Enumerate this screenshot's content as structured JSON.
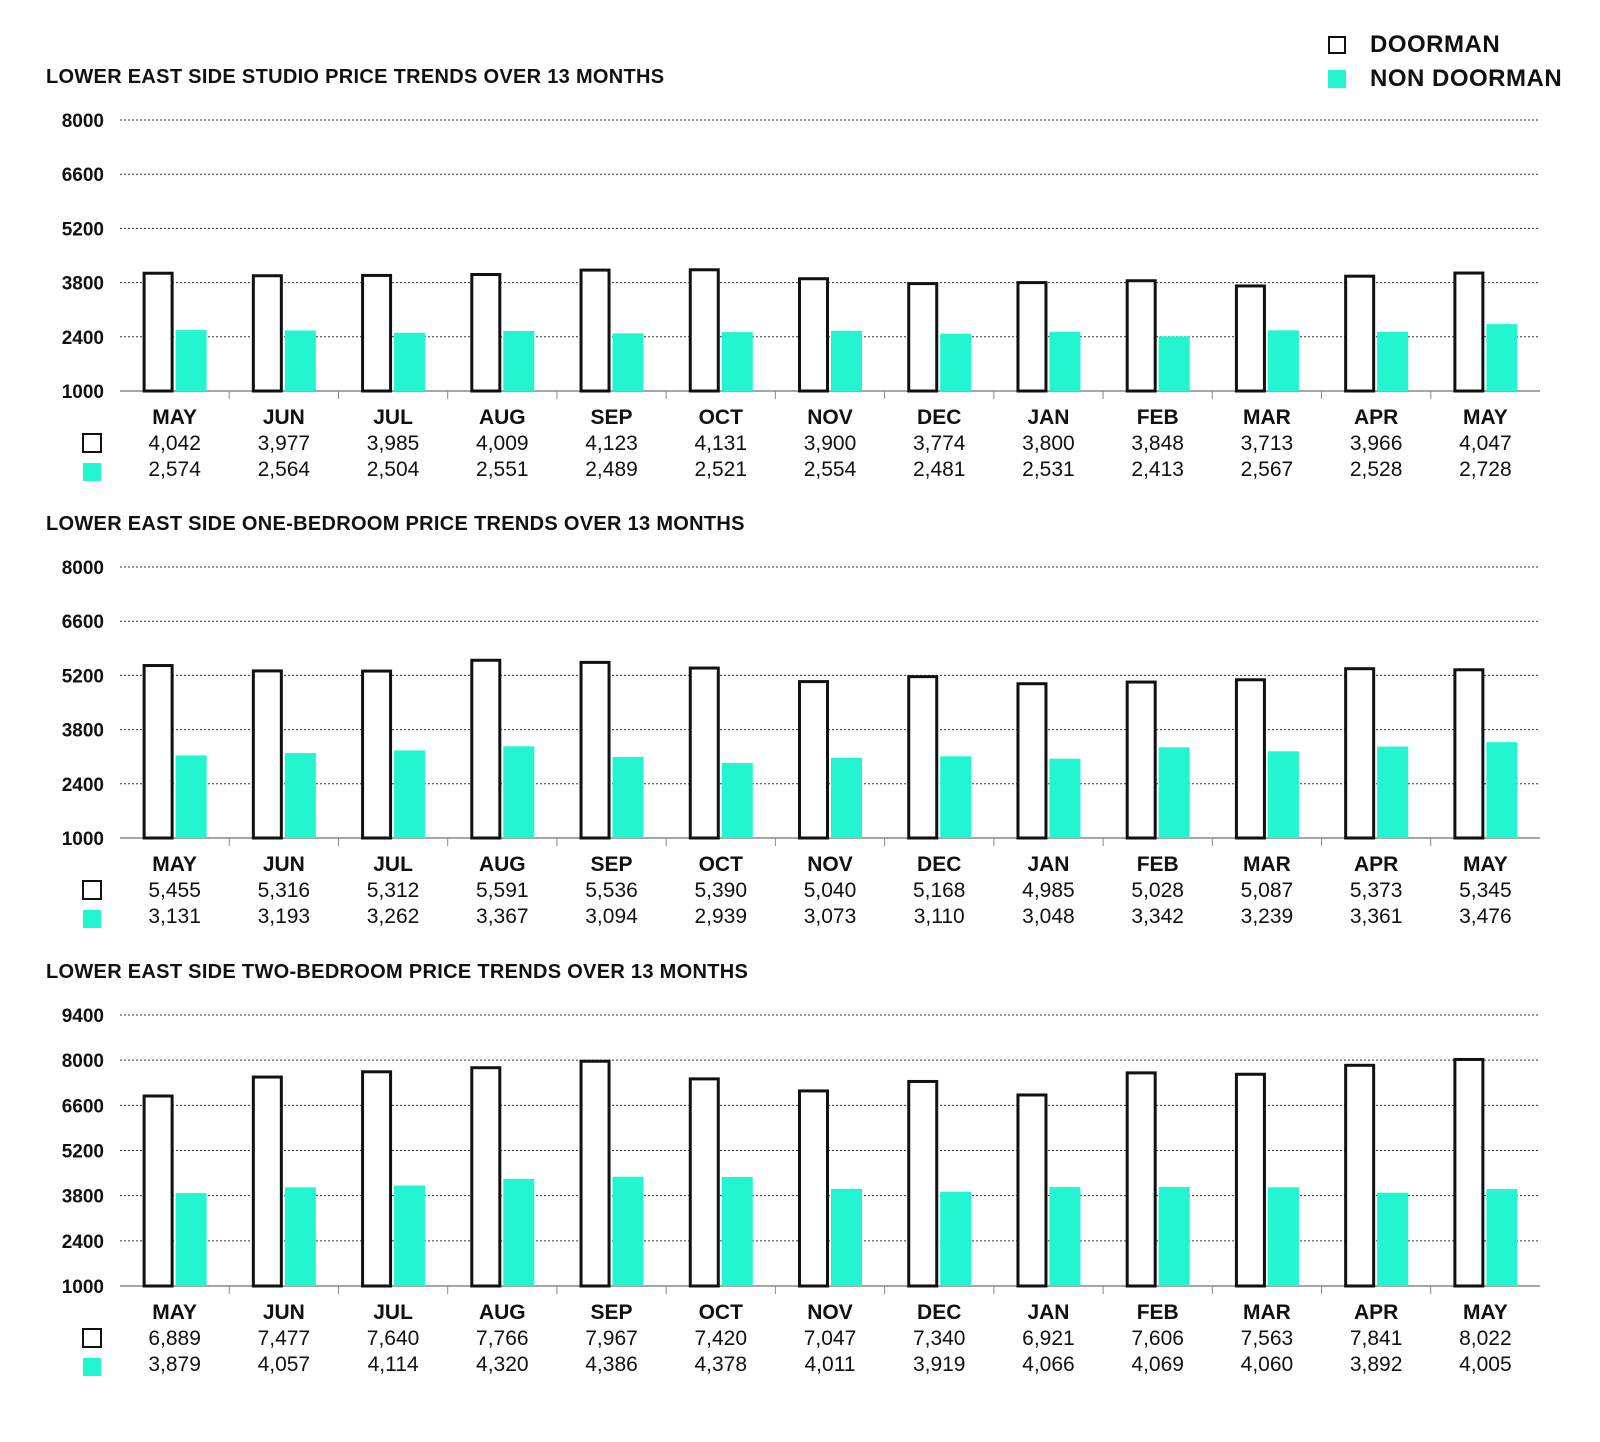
{
  "legend": {
    "doorman_label": "DOORMAN",
    "non_doorman_label": "NON DOORMAN",
    "doorman_icon": "outline-square-icon",
    "non_doorman_icon": "filled-square-icon"
  },
  "colors": {
    "doorman_fill": "#ffffff",
    "doorman_stroke": "#111111",
    "non_doorman_fill": "#22f5cf",
    "grid": "#333333",
    "text": "#111111"
  },
  "chart_data": [
    {
      "type": "bar",
      "title": "LOWER EAST SIDE STUDIO PRICE TRENDS OVER 13 MONTHS",
      "categories": [
        "MAY",
        "JUN",
        "JUL",
        "AUG",
        "SEP",
        "OCT",
        "NOV",
        "DEC",
        "JAN",
        "FEB",
        "MAR",
        "APR",
        "MAY"
      ],
      "ylim": [
        1000,
        8000
      ],
      "yticks": [
        8000,
        6600,
        5200,
        3800,
        2400,
        1000
      ],
      "grid": true,
      "series": [
        {
          "name": "DOORMAN",
          "values": [
            4042,
            3977,
            3985,
            4009,
            4123,
            4131,
            3900,
            3774,
            3800,
            3848,
            3713,
            3966,
            4047
          ],
          "labels": [
            "4,042",
            "3,977",
            "3,985",
            "4,009",
            "4,123",
            "4,131",
            "3,900",
            "3,774",
            "3,800",
            "3,848",
            "3,713",
            "3,966",
            "4,047"
          ]
        },
        {
          "name": "NON DOORMAN",
          "values": [
            2574,
            2564,
            2504,
            2551,
            2489,
            2521,
            2554,
            2481,
            2531,
            2413,
            2567,
            2528,
            2728
          ],
          "labels": [
            "2,574",
            "2,564",
            "2,504",
            "2,551",
            "2,489",
            "2,521",
            "2,554",
            "2,481",
            "2,531",
            "2,413",
            "2,567",
            "2,528",
            "2,728"
          ]
        }
      ]
    },
    {
      "type": "bar",
      "title": "LOWER EAST SIDE ONE-BEDROOM PRICE TRENDS OVER 13 MONTHS",
      "categories": [
        "MAY",
        "JUN",
        "JUL",
        "AUG",
        "SEP",
        "OCT",
        "NOV",
        "DEC",
        "JAN",
        "FEB",
        "MAR",
        "APR",
        "MAY"
      ],
      "ylim": [
        1000,
        8000
      ],
      "yticks": [
        8000,
        6600,
        5200,
        3800,
        2400,
        1000
      ],
      "grid": true,
      "series": [
        {
          "name": "DOORMAN",
          "values": [
            5455,
            5316,
            5312,
            5591,
            5536,
            5390,
            5040,
            5168,
            4985,
            5028,
            5087,
            5373,
            5345
          ],
          "labels": [
            "5,455",
            "5,316",
            "5,312",
            "5,591",
            "5,536",
            "5,390",
            "5,040",
            "5,168",
            "4,985",
            "5,028",
            "5,087",
            "5,373",
            "5,345"
          ]
        },
        {
          "name": "NON DOORMAN",
          "values": [
            3131,
            3193,
            3262,
            3367,
            3094,
            2939,
            3073,
            3110,
            3048,
            3342,
            3239,
            3361,
            3476
          ],
          "labels": [
            "3,131",
            "3,193",
            "3,262",
            "3,367",
            "3,094",
            "2,939",
            "3,073",
            "3,110",
            "3,048",
            "3,342",
            "3,239",
            "3,361",
            "3,476"
          ]
        }
      ]
    },
    {
      "type": "bar",
      "title": "LOWER EAST SIDE TWO-BEDROOM PRICE TRENDS OVER 13 MONTHS",
      "categories": [
        "MAY",
        "JUN",
        "JUL",
        "AUG",
        "SEP",
        "OCT",
        "NOV",
        "DEC",
        "JAN",
        "FEB",
        "MAR",
        "APR",
        "MAY"
      ],
      "ylim": [
        1000,
        9400
      ],
      "yticks": [
        9400,
        8000,
        6600,
        5200,
        3800,
        2400,
        1000
      ],
      "grid": true,
      "series": [
        {
          "name": "DOORMAN",
          "values": [
            6889,
            7477,
            7640,
            7766,
            7967,
            7420,
            7047,
            7340,
            6921,
            7606,
            7563,
            7841,
            8022
          ],
          "labels": [
            "6,889",
            "7,477",
            "7,640",
            "7,766",
            "7,967",
            "7,420",
            "7,047",
            "7,340",
            "6,921",
            "7,606",
            "7,563",
            "7,841",
            "8,022"
          ]
        },
        {
          "name": "NON DOORMAN",
          "values": [
            3879,
            4057,
            4114,
            4320,
            4386,
            4378,
            4011,
            3919,
            4066,
            4069,
            4060,
            3892,
            4005
          ],
          "labels": [
            "3,879",
            "4,057",
            "4,114",
            "4,320",
            "4,386",
            "4,378",
            "4,011",
            "3,919",
            "4,066",
            "4,069",
            "4,060",
            "3,892",
            "4,005"
          ]
        }
      ]
    }
  ]
}
